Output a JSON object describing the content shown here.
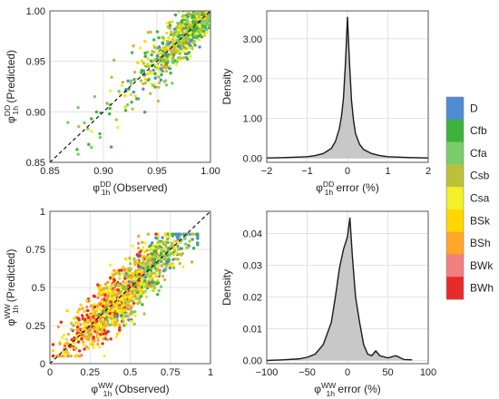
{
  "chart_data": [
    {
      "type": "scatter",
      "xlabel_sym": "φ",
      "xlabel_sup": "DD",
      "xlabel_sub": "1h",
      "xlabel_text": " (Observed)",
      "ylabel_sym": "φ",
      "ylabel_sup": "DD",
      "ylabel_sub": "1h",
      "ylabel_text": " (Predicted)",
      "xlim": [
        0.85,
        1.0
      ],
      "ylim": [
        0.85,
        1.0
      ],
      "x_ticks": [
        0.85,
        0.9,
        0.95,
        1.0
      ],
      "x_tick_labels": [
        "0.85",
        "0.90",
        "0.95",
        "1.00"
      ],
      "y_ticks": [
        0.85,
        0.9,
        0.95,
        1.0
      ],
      "y_tick_labels": [
        "0.85",
        "0.90",
        "0.95",
        "1.00"
      ],
      "grid": true,
      "identity_line": true
    },
    {
      "type": "area",
      "xlabel_sym": "φ",
      "xlabel_sup": "DD",
      "xlabel_sub": "1h",
      "xlabel_text": " error (%)",
      "ylabel": "Density",
      "xlim": [
        -2,
        2
      ],
      "ylim": [
        -0.1,
        3.7
      ],
      "x_ticks": [
        -2,
        -1,
        0,
        1,
        2
      ],
      "x_tick_labels": [
        "−2",
        "−1",
        "0",
        "1",
        "2"
      ],
      "y_ticks": [
        0,
        1,
        2,
        3
      ],
      "y_tick_labels": [
        "0.00",
        "1.00",
        "2.00",
        "3.00"
      ],
      "grid": true,
      "x": [
        -2.0,
        -1.5,
        -1.0,
        -0.8,
        -0.6,
        -0.4,
        -0.3,
        -0.2,
        -0.15,
        -0.1,
        -0.05,
        0.0,
        0.05,
        0.1,
        0.15,
        0.2,
        0.3,
        0.4,
        0.6,
        0.8,
        1.0,
        1.5,
        2.0
      ],
      "y": [
        0.01,
        0.02,
        0.04,
        0.07,
        0.12,
        0.25,
        0.42,
        0.75,
        1.05,
        1.5,
        2.4,
        3.55,
        2.4,
        1.45,
        0.95,
        0.62,
        0.35,
        0.22,
        0.12,
        0.07,
        0.04,
        0.02,
        0.01
      ]
    },
    {
      "type": "scatter",
      "xlabel_sym": "φ",
      "xlabel_sup": "WW",
      "xlabel_sub": "1h",
      "xlabel_text": " (Observed)",
      "ylabel_sym": "φ",
      "ylabel_sup": "WW",
      "ylabel_sub": "1h",
      "ylabel_text": " (Predicted)",
      "xlim": [
        0,
        1
      ],
      "ylim": [
        0,
        1
      ],
      "x_ticks": [
        0,
        0.25,
        0.5,
        0.75,
        1
      ],
      "x_tick_labels": [
        "0",
        "0.25",
        "0.5",
        "0.75",
        "1"
      ],
      "y_ticks": [
        0,
        0.25,
        0.5,
        0.75,
        1
      ],
      "y_tick_labels": [
        "0",
        "0.25",
        "0.5",
        "0.75",
        "1"
      ],
      "grid": true,
      "identity_line": true
    },
    {
      "type": "area",
      "xlabel_sym": "φ",
      "xlabel_sup": "WW",
      "xlabel_sub": "1h",
      "xlabel_text": " error (%)",
      "ylabel": "Density",
      "xlim": [
        -100,
        100
      ],
      "ylim": [
        -0.001,
        0.047
      ],
      "x_ticks": [
        -100,
        -50,
        0,
        50,
        100
      ],
      "x_tick_labels": [
        "−100",
        "−50",
        "0",
        "50",
        "100"
      ],
      "y_ticks": [
        0,
        0.01,
        0.02,
        0.03,
        0.04
      ],
      "y_tick_labels": [
        "0.00",
        "0.01",
        "0.02",
        "0.03",
        "0.04"
      ],
      "grid": true,
      "x": [
        -100,
        -80,
        -60,
        -50,
        -40,
        -30,
        -20,
        -15,
        -10,
        -5,
        0,
        3,
        6,
        10,
        15,
        20,
        25,
        30,
        35,
        40,
        50,
        60,
        70,
        80
      ],
      "y": [
        0.0,
        0.0002,
        0.0005,
        0.001,
        0.002,
        0.005,
        0.012,
        0.02,
        0.029,
        0.035,
        0.039,
        0.045,
        0.033,
        0.02,
        0.012,
        0.005,
        0.002,
        0.0015,
        0.003,
        0.0015,
        0.0008,
        0.0015,
        0.0003,
        0.0002
      ]
    }
  ],
  "legend": {
    "classes": [
      "D",
      "Cfb",
      "Cfa",
      "Csb",
      "Csa",
      "BSk",
      "BSh",
      "BWk",
      "BWh"
    ],
    "colors": [
      "#4f8bd3",
      "#3db33d",
      "#7acd6a",
      "#bfc03a",
      "#f3ef2a",
      "#ffd700",
      "#ffa62b",
      "#f08080",
      "#e82a2a"
    ]
  },
  "colors": {
    "grid": "#e3e3e3",
    "axis": "#555555",
    "density_fill": "#c8c8c8",
    "density_line": "#1a1a1a"
  }
}
